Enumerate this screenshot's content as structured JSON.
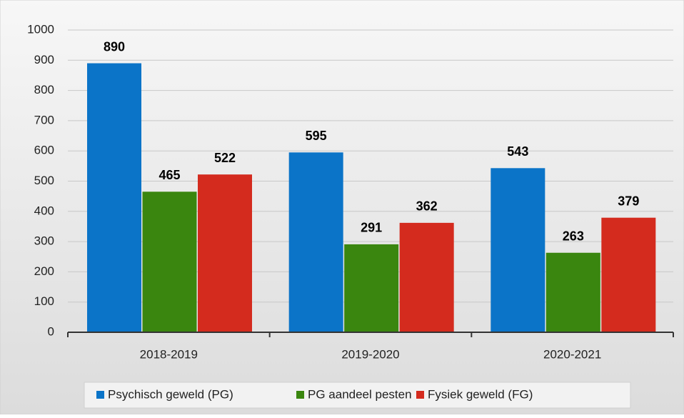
{
  "chart_data": {
    "type": "bar",
    "categories": [
      "2018-2019",
      "2019-2020",
      "2020-2021"
    ],
    "series": [
      {
        "name": "Psychisch geweld (PG)",
        "color": "#0b74c8",
        "values": [
          890,
          595,
          543
        ]
      },
      {
        "name": "PG aandeel pesten",
        "color": "#3a860f",
        "values": [
          465,
          291,
          263
        ]
      },
      {
        "name": "Fysiek geweld (FG)",
        "color": "#d42b1e",
        "values": [
          522,
          362,
          379
        ]
      }
    ],
    "ylim": [
      0,
      1000
    ],
    "yticks": [
      0,
      100,
      200,
      300,
      400,
      500,
      600,
      700,
      800,
      900,
      1000
    ],
    "grid": true,
    "legend": "bottom",
    "data_labels": true
  }
}
